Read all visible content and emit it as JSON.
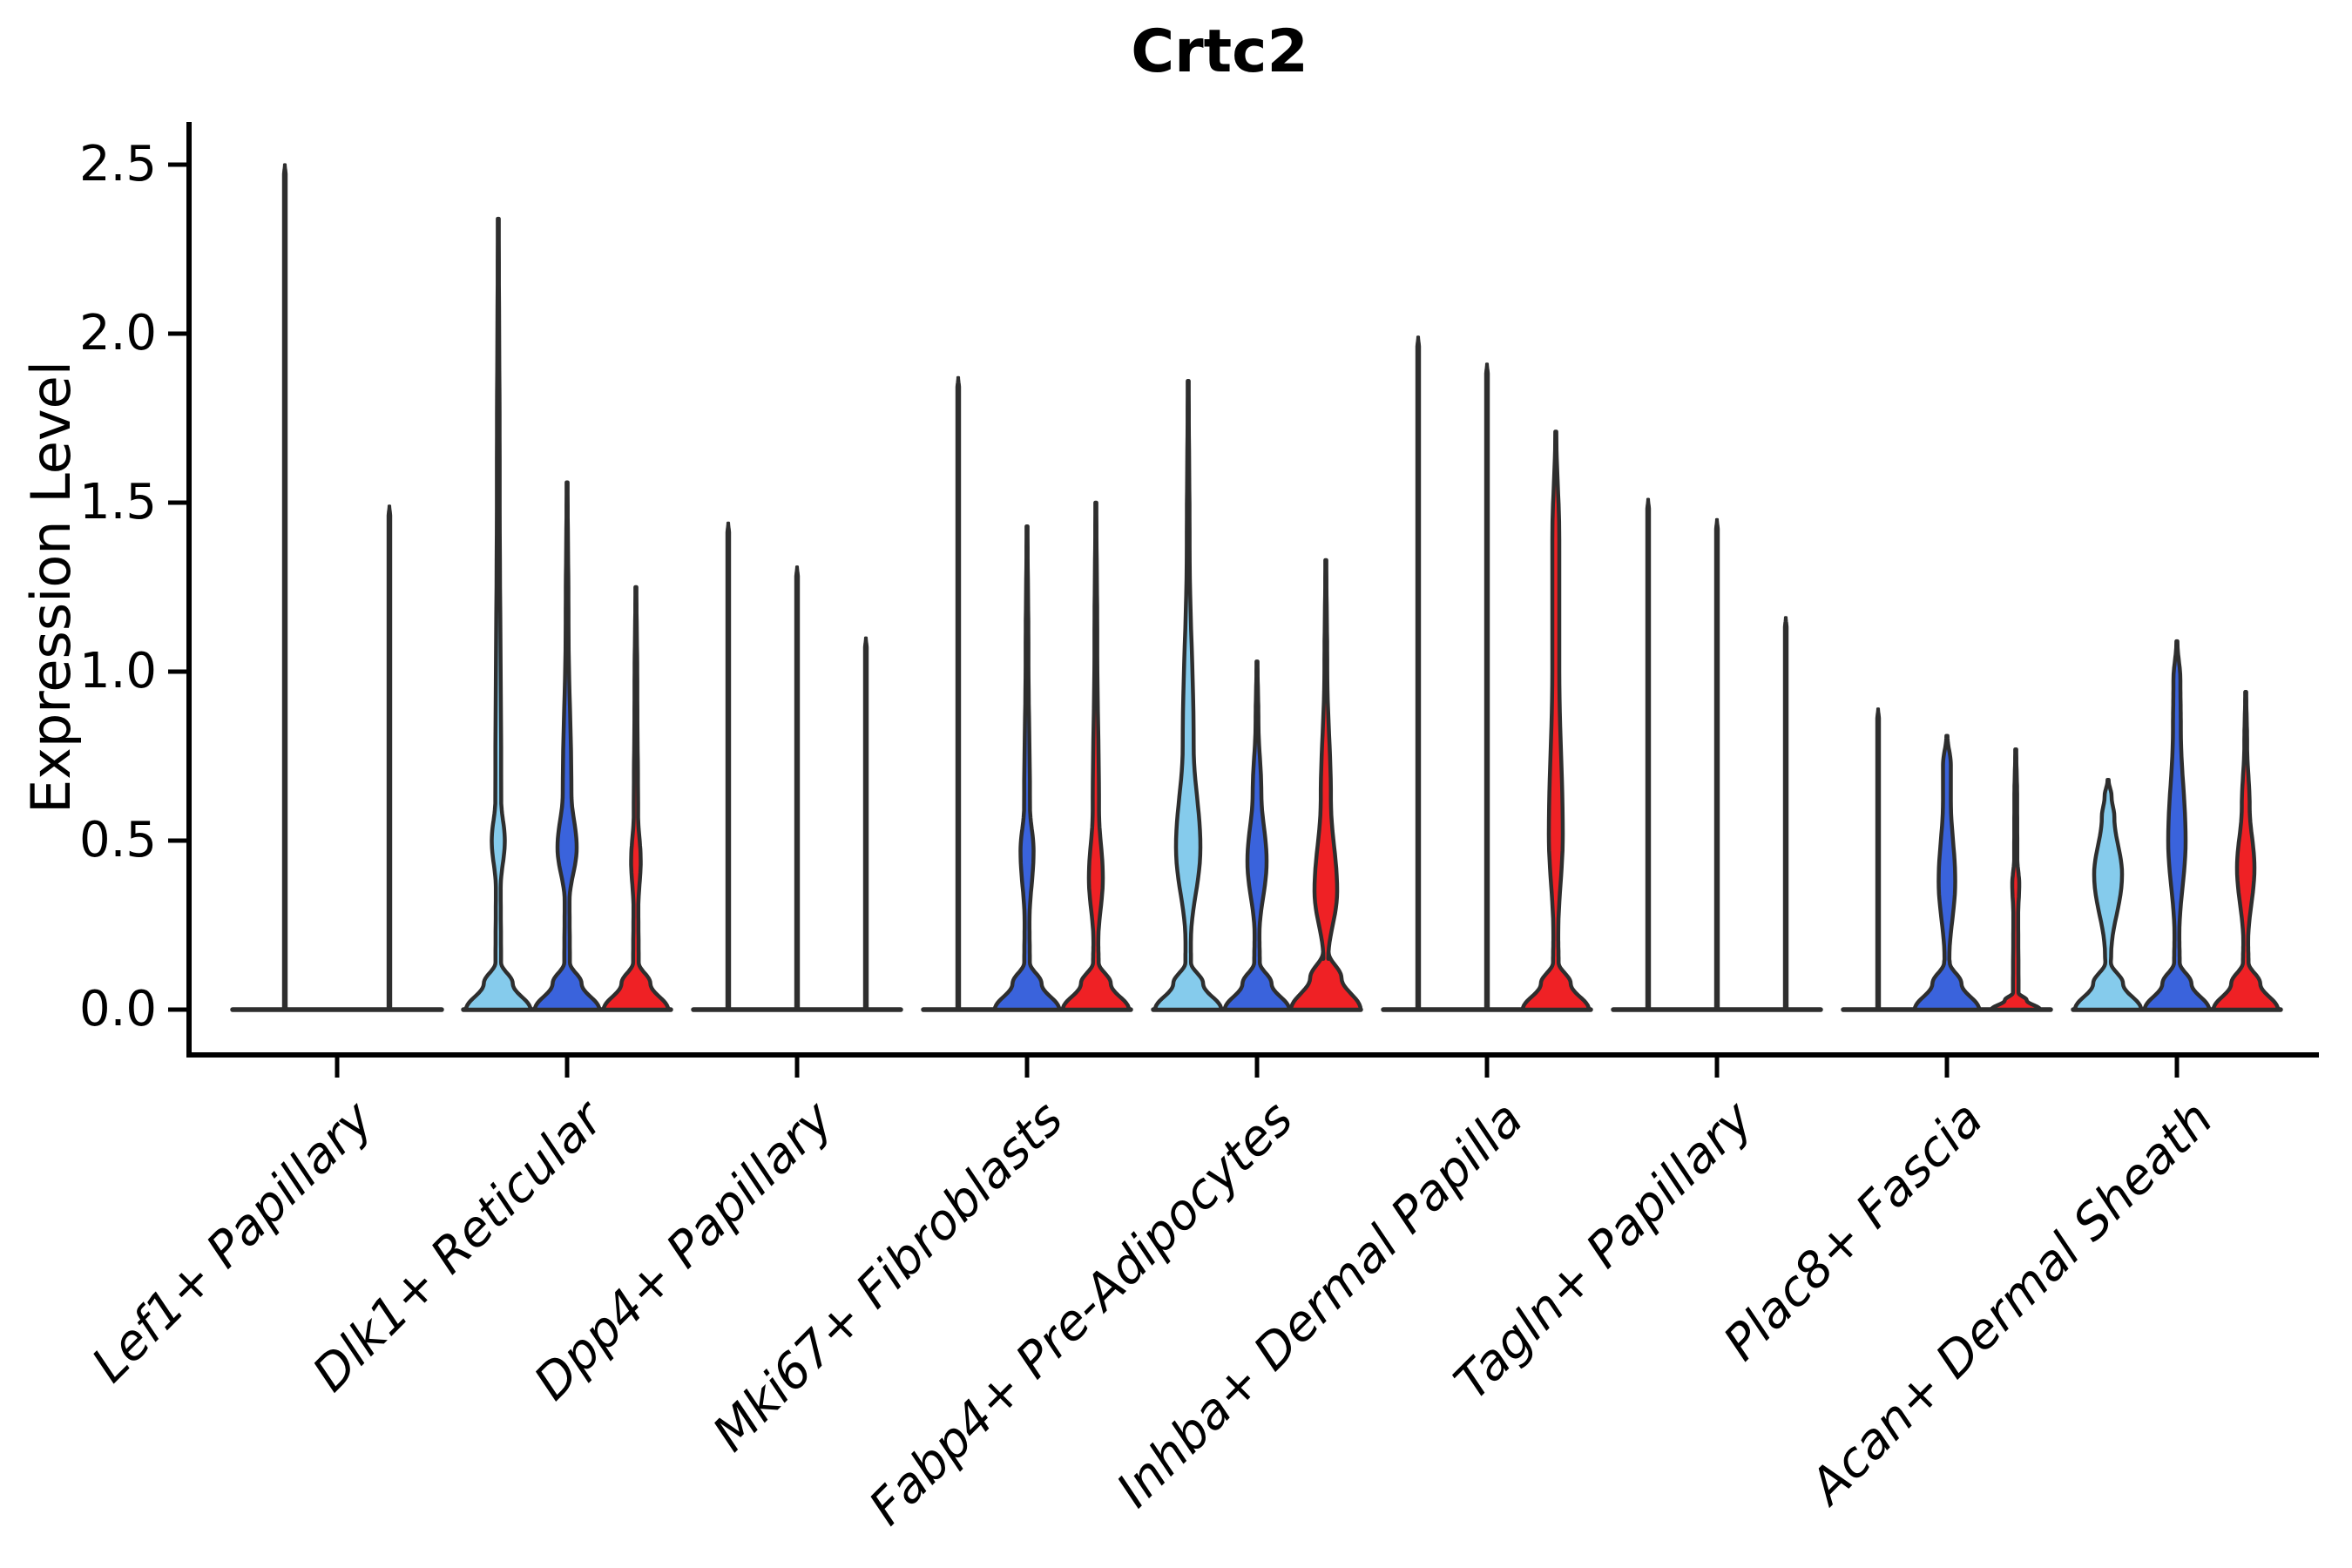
{
  "title": "Crtc2",
  "ylabel": "Expression Level",
  "y_ticks": [
    "0.0",
    "0.5",
    "1.0",
    "1.5",
    "2.0",
    "2.5"
  ],
  "palette": {
    "light_blue": "#85CBEC",
    "blue": "#3A63DC",
    "red": "#EF2125",
    "outline": "#2E2E2E",
    "axis": "#000000"
  },
  "chart_data": {
    "type": "violin",
    "title": "Crtc2",
    "xlabel": "",
    "ylabel": "Expression Level",
    "ylim": [
      -0.13,
      2.63
    ],
    "yticks": [
      0.0,
      0.5,
      1.0,
      1.5,
      2.0,
      2.5
    ],
    "grid": false,
    "legend": "none",
    "series_colors": [
      "light_blue",
      "blue",
      "red"
    ],
    "categories": [
      "Lef1+ Papillary",
      "Dlk1+ Reticular",
      "Dpp4+ Papillary",
      "Mki67+ Fibroblasts",
      "Fabp4+ Pre-Adipocytes",
      "Inhba+ Dermal Papilla",
      "Tagln+ Papillary",
      "Plac8+ Fascia",
      "Acan+ Dermal Sheath"
    ],
    "groups": [
      {
        "label": "Lef1+ Papillary",
        "violins": [
          {
            "color": "light_blue",
            "max": 2.5,
            "shape": "spike"
          },
          {
            "color": "blue",
            "max": 1.49,
            "shape": "spike"
          }
        ]
      },
      {
        "label": "Dlk1+ Reticular",
        "violins": [
          {
            "color": "light_blue",
            "max": 2.34,
            "shape": "body",
            "bulge": {
              "hi": 0.62,
              "peak": 0.5,
              "lo": 0.36,
              "hw": 7.5
            },
            "base_hw": 37
          },
          {
            "color": "blue",
            "max": 1.56,
            "shape": "body",
            "bulge": {
              "hi": 0.64,
              "peak": 0.48,
              "lo": 0.32,
              "hw": 11
            },
            "base_hw": 37
          },
          {
            "color": "red",
            "max": 1.25,
            "shape": "body",
            "bulge": {
              "hi": 0.58,
              "peak": 0.44,
              "lo": 0.3,
              "hw": 5.5
            },
            "base_hw": 37
          }
        ]
      },
      {
        "label": "Dpp4+ Papillary",
        "violins": [
          {
            "color": "light_blue",
            "max": 1.44,
            "shape": "spike"
          },
          {
            "color": "blue",
            "max": 1.31,
            "shape": "spike"
          },
          {
            "color": "red",
            "max": 1.1,
            "shape": "spike"
          }
        ]
      },
      {
        "label": "Mki67+ Fibroblasts",
        "violins": [
          {
            "color": "light_blue",
            "max": 1.87,
            "shape": "spike"
          },
          {
            "color": "blue",
            "max": 1.43,
            "shape": "body",
            "bulge": {
              "hi": 0.6,
              "peak": 0.47,
              "lo": 0.26,
              "hw": 7.5
            },
            "base_hw": 37
          },
          {
            "color": "red",
            "max": 1.5,
            "shape": "body",
            "bulge": {
              "hi": 0.59,
              "peak": 0.39,
              "lo": 0.2,
              "hw": 8
            },
            "base_hw": 38
          }
        ]
      },
      {
        "label": "Fabp4+ Pre-Adipocytes",
        "violins": [
          {
            "color": "light_blue",
            "max": 1.86,
            "shape": "body",
            "bulge": {
              "hi": 0.78,
              "peak": 0.48,
              "lo": 0.2,
              "hw": 14
            },
            "base_hw": 38
          },
          {
            "color": "blue",
            "max": 1.03,
            "shape": "body",
            "bulge": {
              "hi": 0.64,
              "peak": 0.44,
              "lo": 0.22,
              "hw": 11
            },
            "base_hw": 37
          },
          {
            "color": "red",
            "max": 1.33,
            "shape": "body",
            "bulge": {
              "hi": 0.62,
              "peak": 0.35,
              "lo": 0.15,
              "hw": 13
            },
            "base_hw": 40,
            "base_v": 0.17
          }
        ]
      },
      {
        "label": "Inhba+ Dermal Papilla",
        "violins": [
          {
            "color": "light_blue",
            "max": 1.99,
            "shape": "spike"
          },
          {
            "color": "blue",
            "max": 1.91,
            "shape": "spike"
          },
          {
            "color": "red",
            "max": 1.71,
            "shape": "body",
            "bulge": {
              "hi": 1.0,
              "peak": 0.52,
              "lo": 0.22,
              "hw": 8
            },
            "base_hw": 38,
            "spike_hw": 4
          }
        ]
      },
      {
        "label": "Tagln+ Papillary",
        "violins": [
          {
            "color": "light_blue",
            "max": 1.51,
            "shape": "spike"
          },
          {
            "color": "blue",
            "max": 1.45,
            "shape": "spike"
          },
          {
            "color": "red",
            "max": 1.16,
            "shape": "spike"
          }
        ]
      },
      {
        "label": "Plac8+ Fascia",
        "violins": [
          {
            "color": "light_blue",
            "max": 0.89,
            "shape": "spike"
          },
          {
            "color": "blue",
            "max": 0.81,
            "shape": "body",
            "bulge": {
              "hi": 0.62,
              "peak": 0.38,
              "lo": 0.15,
              "hw": 9.5
            },
            "base_hw": 37,
            "spike_hw": 4.5
          },
          {
            "color": "red",
            "max": 0.77,
            "shape": "body",
            "bulge": {
              "hi": 0.45,
              "peak": 0.37,
              "lo": 0.28,
              "hw": 4
            },
            "base_hw": 28,
            "base_v": 0.05
          }
        ]
      },
      {
        "label": "Acan+ Dermal Sheath",
        "violins": [
          {
            "color": "light_blue",
            "max": 0.68,
            "shape": "body",
            "bulge": {
              "hi": 0.57,
              "peak": 0.4,
              "lo": 0.16,
              "hw": 16
            },
            "base_hw": 38,
            "spike_hw": 4
          },
          {
            "color": "blue",
            "max": 1.09,
            "shape": "body",
            "bulge": {
              "hi": 0.83,
              "peak": 0.5,
              "lo": 0.22,
              "hw": 10
            },
            "base_hw": 37,
            "spike_hw": 4
          },
          {
            "color": "red",
            "max": 0.94,
            "shape": "body",
            "bulge": {
              "hi": 0.6,
              "peak": 0.42,
              "lo": 0.2,
              "hw": 10
            },
            "base_hw": 37
          }
        ]
      }
    ]
  }
}
